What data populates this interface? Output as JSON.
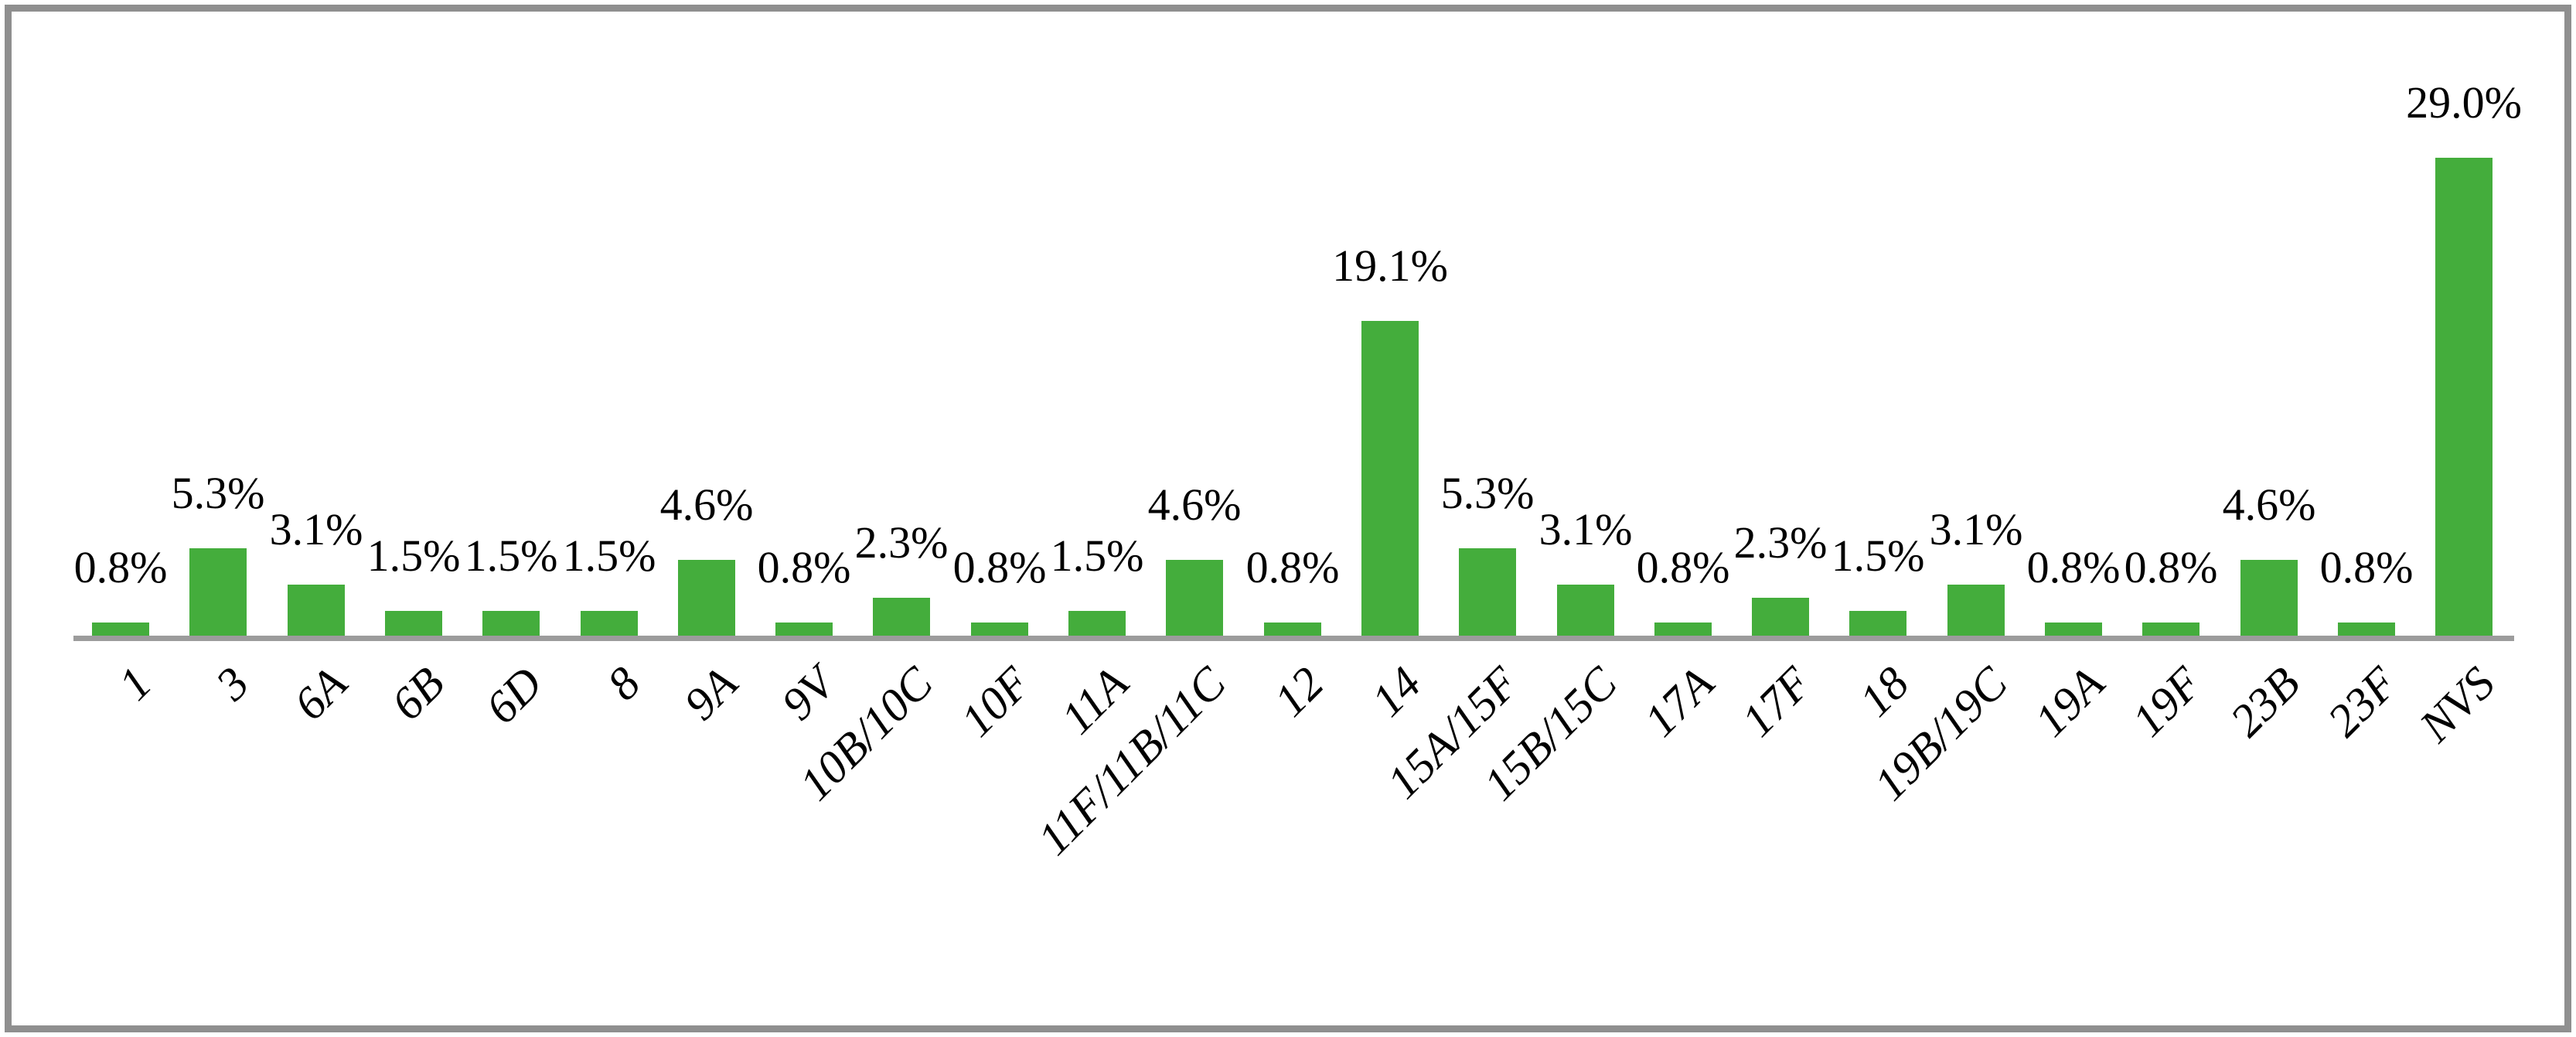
{
  "chart_data": {
    "type": "bar",
    "categories": [
      "1",
      "3",
      "6A",
      "6B",
      "6D",
      "8",
      "9A",
      "9V",
      "10B/10C",
      "10F",
      "11A",
      "11F/11B/11C",
      "12",
      "14",
      "15A/15F",
      "15B/15C",
      "17A",
      "17F",
      "18",
      "19B/19C",
      "19A",
      "19F",
      "23B",
      "23F",
      "NVS"
    ],
    "values": [
      0.8,
      5.3,
      3.1,
      1.5,
      1.5,
      1.5,
      4.6,
      0.8,
      2.3,
      0.8,
      1.5,
      4.6,
      0.8,
      19.1,
      5.3,
      3.1,
      0.8,
      2.3,
      1.5,
      3.1,
      0.8,
      0.8,
      4.6,
      0.8,
      29.0
    ],
    "value_labels": [
      "0.8%",
      "5.3%",
      "3.1%",
      "1.5%",
      "1.5%",
      "1.5%",
      "4.6%",
      "0.8%",
      "2.3%",
      "0.8%",
      "1.5%",
      "4.6%",
      "0.8%",
      "19.1%",
      "5.3%",
      "3.1%",
      "0.8%",
      "2.3%",
      "1.5%",
      "3.1%",
      "0.8%",
      "0.8%",
      "4.6%",
      "0.8%",
      "29.0%"
    ],
    "title": "",
    "xlabel": "",
    "ylabel": "",
    "ylim": [
      0,
      30
    ],
    "grid": false,
    "legend": false,
    "bar_color": "#44ad3c",
    "axis_color": "#9c9c9c",
    "frame_color": "#8f8f8f",
    "label_color": "#000000"
  }
}
